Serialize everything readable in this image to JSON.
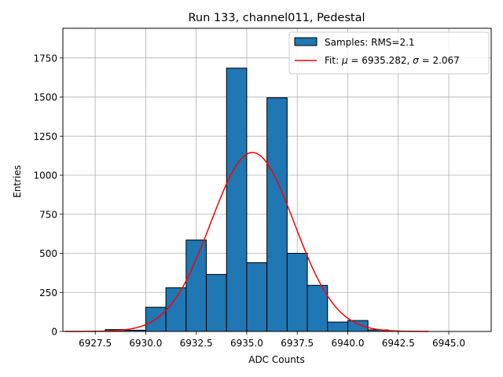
{
  "chart_data": {
    "type": "bar",
    "title": "Run 133, channel011, Pedestal",
    "xlabel": "ADC Counts",
    "ylabel": "Entries",
    "xlim": [
      6925.9,
      6947.1
    ],
    "ylim": [
      0,
      1940
    ],
    "xticks": [
      6927.5,
      6930.0,
      6932.5,
      6935.0,
      6937.5,
      6940.0,
      6942.5,
      6945.0
    ],
    "xtick_labels": [
      "6927.5",
      "6930.0",
      "6932.5",
      "6935.0",
      "6937.5",
      "6940.0",
      "6942.5",
      "6945.0"
    ],
    "yticks": [
      0,
      250,
      500,
      750,
      1000,
      1250,
      1500,
      1750
    ],
    "ytick_labels": [
      "0",
      "250",
      "500",
      "750",
      "1000",
      "1250",
      "1500",
      "1750"
    ],
    "grid": true,
    "legend_position": "top-right",
    "histogram": {
      "name": "Samples: RMS=2.1",
      "color": "#1f77b4",
      "edge_color": "#000000",
      "bin_edges": [
        6926.0,
        6927.0,
        6928.0,
        6929.0,
        6930.0,
        6931.0,
        6932.0,
        6933.0,
        6934.0,
        6935.0,
        6936.0,
        6937.0,
        6938.0,
        6939.0,
        6940.0,
        6941.0,
        6942.0,
        6943.0,
        6944.0,
        6945.0,
        6946.0
      ],
      "values": [
        0,
        0,
        12,
        8,
        155,
        280,
        585,
        365,
        1685,
        440,
        1495,
        500,
        295,
        60,
        70,
        10,
        0,
        0,
        0,
        0
      ]
    },
    "fit": {
      "name": "Fit: μ = 6935.282, σ = 2.067",
      "name_prefix": "Fit: ",
      "mu_symbol": "μ",
      "mu_text": " = 6935.282, ",
      "sigma_symbol": "σ",
      "sigma_text": " = 2.067",
      "color": "#ff0000",
      "mu": 6935.282,
      "sigma": 2.067,
      "amplitude": 1145,
      "x_range": [
        6926.0,
        6944.0
      ]
    }
  }
}
